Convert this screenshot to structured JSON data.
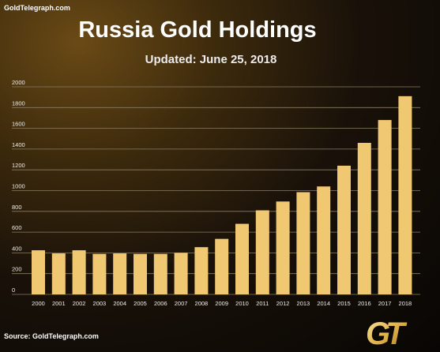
{
  "header": {
    "site": "GoldTelegraph.com",
    "title": "Russia Gold Holdings",
    "subtitle": "Updated: June 25, 2018"
  },
  "footer": {
    "source": "Source:  GoldTelegraph.com",
    "logo_icon": "gt-logo-icon",
    "logo_text": "GT"
  },
  "colors": {
    "bar": "#f0c872",
    "grid": "#8a7d63",
    "tick_text": "#f2efe6"
  },
  "chart_data": {
    "type": "bar",
    "categories": [
      "2000",
      "2001",
      "2002",
      "2003",
      "2004",
      "2005",
      "2006",
      "2007",
      "2008",
      "2009",
      "2010",
      "2011",
      "2012",
      "2013",
      "2014",
      "2015",
      "2016",
      "2017",
      "2018"
    ],
    "values": [
      425,
      395,
      425,
      390,
      395,
      390,
      390,
      400,
      455,
      535,
      680,
      810,
      895,
      985,
      1040,
      1240,
      1460,
      1680,
      1910
    ],
    "yticks": [
      0,
      200,
      400,
      600,
      800,
      1000,
      1200,
      1400,
      1600,
      1800,
      2000
    ],
    "ylim": [
      0,
      2000
    ],
    "grid": true,
    "title": "Russia Gold Holdings",
    "xlabel": "",
    "ylabel": ""
  }
}
